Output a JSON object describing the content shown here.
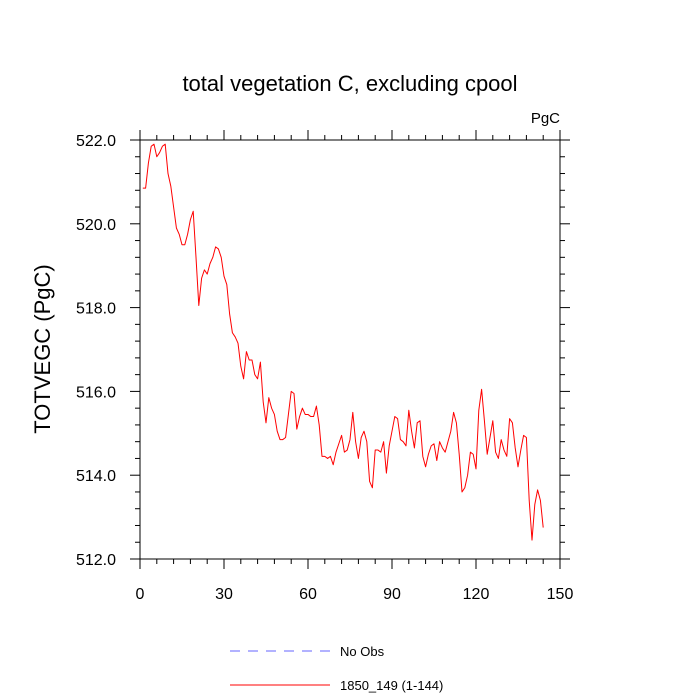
{
  "chart_data": {
    "type": "line",
    "title": "total vegetation C, excluding cpool",
    "units": "PgC",
    "ylabel": "TOTVEGC  (PgC)",
    "xlabel": "",
    "xlim": [
      0,
      150
    ],
    "ylim": [
      512,
      522
    ],
    "x_ticks": [
      0,
      30,
      60,
      90,
      120,
      150
    ],
    "x_tick_labels": [
      "0",
      "30",
      "60",
      "90",
      "120",
      "150"
    ],
    "y_ticks": [
      512,
      514,
      516,
      518,
      520,
      522
    ],
    "y_tick_labels": [
      "512.0",
      "514.0",
      "516.0",
      "518.0",
      "520.0",
      "522.0"
    ],
    "series": [
      {
        "name": "No Obs",
        "color": "#6666ff",
        "dash": true,
        "x": [],
        "values": []
      },
      {
        "name": "1850_149 (1-144)",
        "color": "#ff0000",
        "dash": false,
        "x": [
          1,
          2,
          3,
          4,
          5,
          6,
          7,
          8,
          9,
          10,
          11,
          12,
          13,
          14,
          15,
          16,
          17,
          18,
          19,
          20,
          21,
          22,
          23,
          24,
          25,
          26,
          27,
          28,
          29,
          30,
          31,
          32,
          33,
          34,
          35,
          36,
          37,
          38,
          39,
          40,
          41,
          42,
          43,
          44,
          45,
          46,
          47,
          48,
          49,
          50,
          51,
          52,
          53,
          54,
          55,
          56,
          57,
          58,
          59,
          60,
          61,
          62,
          63,
          64,
          65,
          66,
          67,
          68,
          69,
          70,
          71,
          72,
          73,
          74,
          75,
          76,
          77,
          78,
          79,
          80,
          81,
          82,
          83,
          84,
          85,
          86,
          87,
          88,
          89,
          90,
          91,
          92,
          93,
          94,
          95,
          96,
          97,
          98,
          99,
          100,
          101,
          102,
          103,
          104,
          105,
          106,
          107,
          108,
          109,
          110,
          111,
          112,
          113,
          114,
          115,
          116,
          117,
          118,
          119,
          120,
          121,
          122,
          123,
          124,
          125,
          126,
          127,
          128,
          129,
          130,
          131,
          132,
          133,
          134,
          135,
          136,
          137,
          138,
          139,
          140,
          141,
          142,
          143,
          144
        ],
        "values": [
          520.85,
          520.85,
          521.45,
          521.85,
          521.9,
          521.6,
          521.7,
          521.85,
          521.9,
          521.2,
          520.9,
          520.4,
          519.9,
          519.75,
          519.5,
          519.5,
          519.75,
          520.1,
          520.3,
          519.2,
          518.05,
          518.7,
          518.9,
          518.8,
          519.05,
          519.2,
          519.45,
          519.4,
          519.2,
          518.75,
          518.55,
          517.85,
          517.4,
          517.3,
          517.15,
          516.6,
          516.3,
          516.95,
          516.75,
          516.75,
          516.4,
          516.3,
          516.7,
          515.75,
          515.25,
          515.85,
          515.6,
          515.45,
          515.05,
          514.85,
          514.85,
          514.9,
          515.45,
          516.0,
          515.95,
          515.1,
          515.4,
          515.6,
          515.45,
          515.45,
          515.4,
          515.4,
          515.65,
          515.2,
          514.45,
          514.45,
          514.4,
          514.45,
          514.25,
          514.55,
          514.75,
          514.95,
          514.55,
          514.6,
          514.85,
          515.5,
          514.8,
          514.4,
          514.9,
          515.05,
          514.8,
          513.85,
          513.7,
          514.6,
          514.6,
          514.55,
          514.8,
          514.05,
          514.7,
          515.05,
          515.4,
          515.35,
          514.85,
          514.8,
          514.7,
          515.55,
          515.05,
          514.65,
          515.25,
          515.3,
          514.45,
          514.2,
          514.5,
          514.7,
          514.75,
          514.35,
          514.8,
          514.65,
          514.55,
          514.8,
          515.05,
          515.5,
          515.25,
          514.5,
          513.6,
          513.7,
          514.0,
          514.55,
          514.5,
          514.15,
          515.55,
          516.05,
          515.3,
          514.5,
          514.9,
          515.3,
          514.55,
          514.4,
          514.85,
          514.6,
          514.45,
          515.35,
          515.25,
          514.65,
          514.2,
          514.6,
          514.95,
          514.9,
          513.4,
          512.45,
          513.3,
          513.65,
          513.4,
          512.75
        ]
      }
    ],
    "legend_position": "bottom-center"
  }
}
